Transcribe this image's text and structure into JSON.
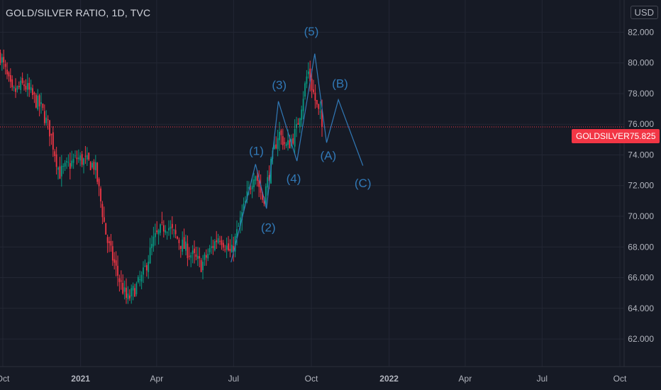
{
  "header": {
    "title": "GOLD/SILVER RATIO, 1D, TVC",
    "currency": "USD"
  },
  "last_price": {
    "symbol": "GOLDSILVER",
    "value": "75.825",
    "color": "#f23645"
  },
  "colors": {
    "background": "#161a25",
    "grid": "#232734",
    "axis_text": "#b2b5be",
    "wave_lines": "#3179b7",
    "up_candle": "#089981",
    "down_candle": "#f23645"
  },
  "chart_data": {
    "type": "candlestick",
    "title": "GOLD/SILVER RATIO, 1D, TVC",
    "currency": "USD",
    "x_ticks": [
      "Oct",
      "2021",
      "Apr",
      "Jul",
      "Oct",
      "2022",
      "Apr",
      "Jul",
      "Oct"
    ],
    "y_ticks": [
      62,
      64,
      66,
      68,
      70,
      72,
      74,
      76,
      78,
      80,
      82
    ],
    "ylim": [
      60.2,
      84.1
    ],
    "grid": true,
    "last_value": 75.825,
    "series": [
      {
        "name": "GOLDSILVER",
        "points": [
          {
            "date": "2020-09-28",
            "value": 80.5
          },
          {
            "date": "2020-10-12",
            "value": 78.0
          },
          {
            "date": "2020-10-26",
            "value": 78.6
          },
          {
            "date": "2020-11-16",
            "value": 77.0
          },
          {
            "date": "2020-11-26",
            "value": 75.5
          },
          {
            "date": "2020-12-07",
            "value": 72.8
          },
          {
            "date": "2020-12-28",
            "value": 73.8
          },
          {
            "date": "2021-01-18",
            "value": 73.3
          },
          {
            "date": "2021-02-01",
            "value": 68.5
          },
          {
            "date": "2021-02-15",
            "value": 66.0
          },
          {
            "date": "2021-02-25",
            "value": 64.5
          },
          {
            "date": "2021-03-15",
            "value": 66.0
          },
          {
            "date": "2021-03-29",
            "value": 68.5
          },
          {
            "date": "2021-04-12",
            "value": 69.5
          },
          {
            "date": "2021-05-03",
            "value": 68.0
          },
          {
            "date": "2021-05-24",
            "value": 66.8
          },
          {
            "date": "2021-06-14",
            "value": 68.8
          },
          {
            "date": "2021-06-28",
            "value": 67.5
          },
          {
            "date": "2021-07-12",
            "value": 70.3
          },
          {
            "date": "2021-07-26",
            "value": 73.0
          },
          {
            "date": "2021-08-05",
            "value": 71.0
          },
          {
            "date": "2021-08-23",
            "value": 75.5
          },
          {
            "date": "2021-09-02",
            "value": 74.5
          },
          {
            "date": "2021-09-13",
            "value": 75.5
          },
          {
            "date": "2021-09-27",
            "value": 79.5
          },
          {
            "date": "2021-10-08",
            "value": 77.0
          },
          {
            "date": "2021-10-15",
            "value": 75.825
          }
        ]
      }
    ],
    "annotations": [
      {
        "label": "(1)",
        "date": "2021-07-28",
        "value": 74.0
      },
      {
        "label": "(2)",
        "date": "2021-08-11",
        "value": 69.0
      },
      {
        "label": "(3)",
        "date": "2021-08-24",
        "value": 78.3
      },
      {
        "label": "(4)",
        "date": "2021-09-10",
        "value": 72.2
      },
      {
        "label": "(5)",
        "date": "2021-10-01",
        "value": 81.8
      },
      {
        "label": "(A)",
        "date": "2021-10-21",
        "value": 73.7
      },
      {
        "label": "(B)",
        "date": "2021-11-04",
        "value": 78.4
      },
      {
        "label": "(C)",
        "date": "2021-12-01",
        "value": 71.9
      }
    ],
    "wave_lines": [
      {
        "date": "2021-06-28",
        "value": 67.0
      },
      {
        "date": "2021-07-27",
        "value": 73.4
      },
      {
        "date": "2021-08-09",
        "value": 70.5
      },
      {
        "date": "2021-08-23",
        "value": 77.5
      },
      {
        "date": "2021-09-14",
        "value": 73.6
      },
      {
        "date": "2021-10-05",
        "value": 80.6
      },
      {
        "date": "2021-10-19",
        "value": 74.8
      },
      {
        "date": "2021-11-02",
        "value": 77.6
      },
      {
        "date": "2021-12-01",
        "value": 73.3
      }
    ]
  }
}
